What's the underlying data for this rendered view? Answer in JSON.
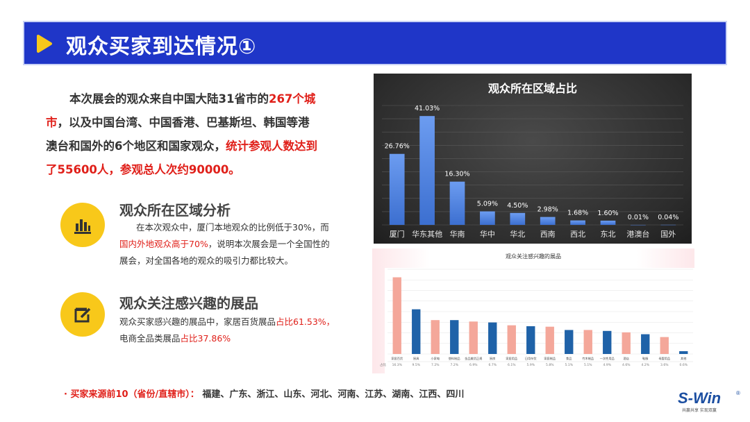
{
  "header": {
    "title": "观众买家到达情况①"
  },
  "intro": {
    "p1": "本次展会的观众来自中国大陆31省市的",
    "r1a": "267个城",
    "r1b": "市",
    "p2": "，以及中国台湾、中国香港、巴基斯坦、韩国等港",
    "p3": "澳台和国外的6个地区和国家观众，",
    "r2a": "统计参观人数达到",
    "r2b": "了55600人，参观总人次约90000。"
  },
  "section1": {
    "title": "观众所在区域分析",
    "line1": "在本次观众中，厦门本地观众的比例低于30%，而",
    "red": "国内外地观众高于70%",
    "line2": "，说明本次展会是一个全国性的",
    "line3": "展会，对全国各地的观众的吸引力都比较大。"
  },
  "section2": {
    "title": "观众关注感兴趣的展品",
    "line1": "观众买家感兴趣的展品中，家居百货展品",
    "red1": "占比61.53%，",
    "line2": "电商全品类展品",
    "red2": "占比37.86%"
  },
  "footer": {
    "label": "· 买家来源前10（省份/直辖市）：",
    "text": "福建、广东、浙江、山东、河北、河南、江苏、湖南、江西、四川"
  },
  "logo": {
    "text": "S-Win",
    "reg": "®",
    "tagline": "共赢共享  实现双赢"
  },
  "colors": {
    "header": "#1f36c8",
    "accent": "#f8c81a",
    "red": "#e0201a",
    "bar1": "#4f86e0",
    "bar2pink": "#f4a79a",
    "bar2blue": "#1f62a8"
  },
  "chart_data": [
    {
      "type": "bar",
      "title": "观众所在区域占比",
      "categories": [
        "厦门",
        "华东其他",
        "华南",
        "华中",
        "华北",
        "西南",
        "西北",
        "东北",
        "港澳台",
        "国外"
      ],
      "values": [
        26.76,
        41.03,
        16.3,
        5.09,
        4.5,
        2.98,
        1.68,
        1.6,
        0.01,
        0.04
      ],
      "data_labels": [
        "26.76%",
        "41.03%",
        "16.30%",
        "5.09%",
        "4.50%",
        "2.98%",
        "1.68%",
        "1.60%",
        "0.01%",
        "0.04%"
      ],
      "ylim": [
        0,
        45
      ],
      "grid": true
    },
    {
      "type": "bar",
      "title": "观众关注感兴趣的展品",
      "categories": [
        "家居百货",
        "厨具",
        "小家电",
        "塑料制品",
        "金品美货正规",
        "厨房",
        "家居用品",
        "日用杂货",
        "家庭制品",
        "食品",
        "竹木制品",
        "一次性用品",
        "酒店",
        "鞋服",
        "母婴用品",
        "其他"
      ],
      "values": [
        16.3,
        9.5,
        7.2,
        7.2,
        6.9,
        6.7,
        6.1,
        5.9,
        5.8,
        5.1,
        5.1,
        4.9,
        4.6,
        4.2,
        3.6,
        0.6
      ],
      "data_labels": [
        "16.3%",
        "9.5%",
        "7.2%",
        "7.2%",
        "6.9%",
        "6.7%",
        "6.1%",
        "5.9%",
        "5.8%",
        "5.1%",
        "5.1%",
        "4.9%",
        "4.6%",
        "4.2%",
        "3.6%",
        "0.6%"
      ],
      "row_label": "占比",
      "ylim": [
        0,
        18
      ],
      "grid": true
    }
  ]
}
